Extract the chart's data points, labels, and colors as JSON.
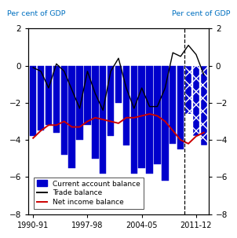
{
  "ylabel_left": "Per cent of GDP",
  "ylabel_right": "Per cent of GDP",
  "ylim": [
    -8,
    2
  ],
  "yticks": [
    -8,
    -6,
    -4,
    -2,
    0,
    2
  ],
  "x_labels": [
    "1990-91",
    "1997-98",
    "2004-05",
    "2011-12"
  ],
  "n_bars": 23,
  "current_account": [
    -3.8,
    -3.5,
    -3.2,
    -3.6,
    -4.8,
    -5.5,
    -4.0,
    -3.2,
    -5.0,
    -5.8,
    -3.8,
    -2.0,
    -4.3,
    -5.8,
    -5.5,
    -5.8,
    -5.3,
    -6.2,
    -4.2,
    -4.5,
    -2.6,
    -3.8,
    -4.3
  ],
  "trade_balance": [
    -0.1,
    -0.3,
    -1.2,
    0.1,
    -0.3,
    -1.3,
    -2.3,
    -0.3,
    -1.5,
    -2.4,
    -0.3,
    0.4,
    -1.2,
    -2.3,
    -1.2,
    -2.2,
    -2.2,
    -1.2,
    0.7,
    0.5,
    1.1,
    0.6,
    -0.5
  ],
  "net_income": [
    -3.9,
    -3.5,
    -3.2,
    -3.2,
    -3.0,
    -3.3,
    -3.3,
    -3.0,
    -2.8,
    -2.9,
    -3.0,
    -3.1,
    -2.8,
    -2.8,
    -2.7,
    -2.6,
    -2.7,
    -3.0,
    -3.5,
    -4.0,
    -4.2,
    -3.8,
    -3.6
  ],
  "forecast_start_idx": 20,
  "bar_color_solid": "#0000CC",
  "hatch_facecolor": "#0000CC",
  "hatch_pattern": "xx",
  "trade_color": "#000000",
  "net_income_color": "#CC0000",
  "background_color": "#ffffff",
  "tick_color": "#000000",
  "label_color": "#0070C0",
  "forecast_label_color": "#FF8C00",
  "x_tick_positions": [
    0,
    7,
    14,
    21
  ],
  "legend_items": [
    "Current account balance",
    "Trade balance",
    "Net income balance"
  ]
}
